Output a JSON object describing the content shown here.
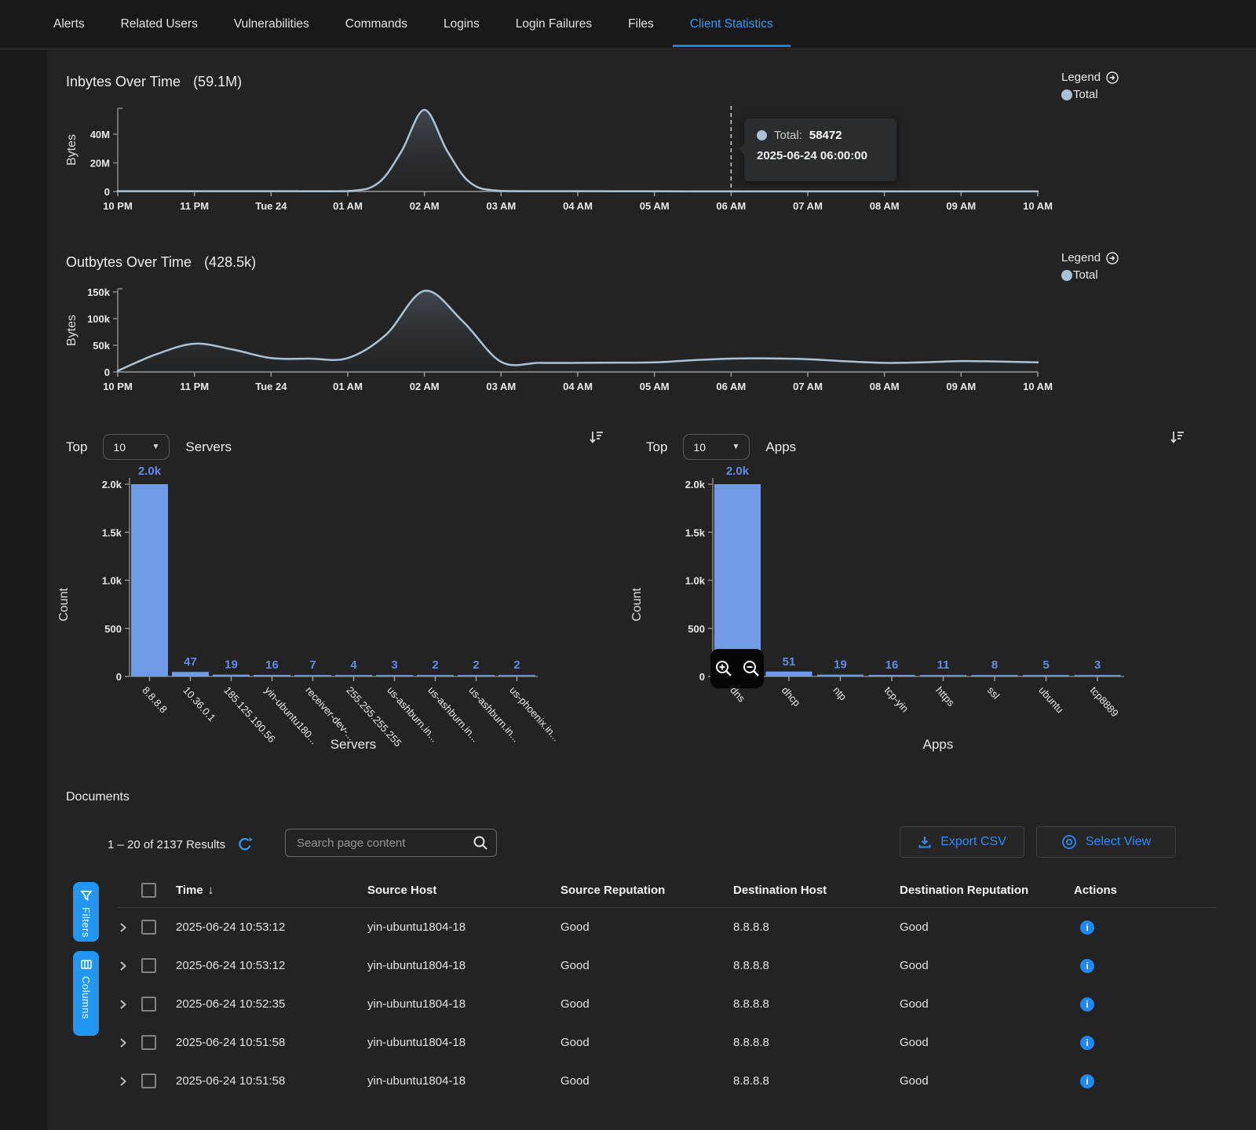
{
  "tabs": [
    {
      "label": "Alerts",
      "active": false
    },
    {
      "label": "Related Users",
      "active": false
    },
    {
      "label": "Vulnerabilities",
      "active": false
    },
    {
      "label": "Commands",
      "active": false
    },
    {
      "label": "Logins",
      "active": false
    },
    {
      "label": "Login Failures",
      "active": false
    },
    {
      "label": "Files",
      "active": false
    },
    {
      "label": "Client Statistics",
      "active": true
    }
  ],
  "legend": {
    "label": "Legend",
    "series": "Total"
  },
  "icons": {
    "caret_down": "▼",
    "sort_desc": "↓",
    "info": "i"
  },
  "chart_data": {
    "inbytes": {
      "type": "area",
      "title": "Inbytes Over Time",
      "total_label": "(59.1M)",
      "ylabel": "Bytes",
      "series_name": "Total",
      "x_ticks": [
        "10 PM",
        "11 PM",
        "Tue 24",
        "01 AM",
        "02 AM",
        "03 AM",
        "04 AM",
        "05 AM",
        "06 AM",
        "07 AM",
        "08 AM",
        "09 AM",
        "10 AM"
      ],
      "y_ticks": [
        {
          "v": 0,
          "label": "0"
        },
        {
          "v": 20000000,
          "label": "20M"
        },
        {
          "v": 40000000,
          "label": "40M"
        }
      ],
      "ymax": 58500000,
      "points": [
        [
          0,
          200000
        ],
        [
          1,
          200000
        ],
        [
          2,
          200000
        ],
        [
          3,
          300000
        ],
        [
          3.4,
          6000000
        ],
        [
          3.7,
          28000000
        ],
        [
          4,
          57000000
        ],
        [
          4.3,
          28000000
        ],
        [
          4.6,
          6000000
        ],
        [
          5,
          400000
        ],
        [
          6,
          200000
        ],
        [
          7,
          100000
        ],
        [
          8,
          58472
        ],
        [
          9,
          60000
        ],
        [
          10,
          50000
        ],
        [
          11,
          50000
        ],
        [
          12,
          50000
        ]
      ],
      "cursor_hour": 8,
      "tooltip": {
        "series_label": "Total:",
        "value": "58472",
        "timestamp": "2025-06-24 06:00:00"
      }
    },
    "outbytes": {
      "type": "area",
      "title": "Outbytes Over Time",
      "total_label": "(428.5k)",
      "ylabel": "Bytes",
      "series_name": "Total",
      "x_ticks": [
        "10 PM",
        "11 PM",
        "Tue 24",
        "01 AM",
        "02 AM",
        "03 AM",
        "04 AM",
        "05 AM",
        "06 AM",
        "07 AM",
        "08 AM",
        "09 AM",
        "10 AM"
      ],
      "y_ticks": [
        {
          "v": 0,
          "label": "0"
        },
        {
          "v": 50000,
          "label": "50k"
        },
        {
          "v": 100000,
          "label": "100k"
        },
        {
          "v": 150000,
          "label": "150k"
        }
      ],
      "ymax": 164000,
      "points": [
        [
          0,
          2000
        ],
        [
          0.5,
          33000
        ],
        [
          1,
          53000
        ],
        [
          1.5,
          42000
        ],
        [
          2,
          26000
        ],
        [
          2.5,
          25000
        ],
        [
          3,
          26000
        ],
        [
          3.5,
          70000
        ],
        [
          4,
          152000
        ],
        [
          4.5,
          95000
        ],
        [
          5,
          19000
        ],
        [
          5.5,
          17000
        ],
        [
          6,
          17000
        ],
        [
          6.5,
          17500
        ],
        [
          7,
          18000
        ],
        [
          7.5,
          22000
        ],
        [
          8,
          25000
        ],
        [
          8.5,
          25500
        ],
        [
          9,
          24000
        ],
        [
          9.5,
          20000
        ],
        [
          10,
          17000
        ],
        [
          10.5,
          18000
        ],
        [
          11,
          20500
        ],
        [
          11.5,
          19500
        ],
        [
          12,
          18000
        ]
      ]
    },
    "servers": {
      "type": "bar",
      "top_label": "Top",
      "top_value": "10",
      "entity": "Servers",
      "ylabel": "Count",
      "xlabel": "Servers",
      "y_ticks": [
        {
          "v": 0,
          "label": "0"
        },
        {
          "v": 500,
          "label": "500"
        },
        {
          "v": 1000,
          "label": "1.0k"
        },
        {
          "v": 1500,
          "label": "1.5k"
        },
        {
          "v": 2000,
          "label": "2.0k"
        }
      ],
      "ymax": 2000,
      "categories": [
        "8.8.8.8",
        "10.36.0.1",
        "185.125.190.56",
        "yin-ubuntu180...",
        "receiver-dev-...",
        "255.255.255.255",
        "us-ashburn.in...",
        "us-ashburn.in...",
        "us-ashburn.in...",
        "us-phoenix.in..."
      ],
      "values": [
        2000,
        47,
        19,
        16,
        7,
        4,
        3,
        2,
        2,
        2
      ],
      "value_labels": [
        "2.0k",
        "47",
        "19",
        "16",
        "7",
        "4",
        "3",
        "2",
        "2",
        "2"
      ]
    },
    "apps": {
      "type": "bar",
      "top_label": "Top",
      "top_value": "10",
      "entity": "Apps",
      "ylabel": "Count",
      "xlabel": "Apps",
      "y_ticks": [
        {
          "v": 0,
          "label": "0"
        },
        {
          "v": 500,
          "label": "500"
        },
        {
          "v": 1000,
          "label": "1.0k"
        },
        {
          "v": 1500,
          "label": "1.5k"
        },
        {
          "v": 2000,
          "label": "2.0k"
        }
      ],
      "ymax": 2000,
      "categories": [
        "dns",
        "dhcp",
        "ntp",
        "tcp-yin",
        "https",
        "ssl",
        "ubuntu",
        "tcp8889"
      ],
      "values": [
        2000,
        51,
        19,
        16,
        11,
        8,
        5,
        3
      ],
      "value_labels": [
        "2.0k",
        "51",
        "19",
        "16",
        "11",
        "8",
        "5",
        "3"
      ]
    }
  },
  "documents": {
    "heading": "Documents",
    "results_text": "1 – 20 of 2137 Results",
    "search_placeholder": "Search page content",
    "export_csv_label": "Export CSV",
    "select_view_label": "Select View",
    "filters_label": "Filters",
    "columns_label": "Columns",
    "table": {
      "headers": [
        "Time",
        "Source Host",
        "Source Reputation",
        "Destination Host",
        "Destination Reputation",
        "Actions"
      ],
      "rows": [
        {
          "time": "2025-06-24 10:53:12",
          "source_host": "yin-ubuntu1804-18",
          "source_reputation": "Good",
          "destination_host": "8.8.8.8",
          "destination_reputation": "Good"
        },
        {
          "time": "2025-06-24 10:53:12",
          "source_host": "yin-ubuntu1804-18",
          "source_reputation": "Good",
          "destination_host": "8.8.8.8",
          "destination_reputation": "Good"
        },
        {
          "time": "2025-06-24 10:52:35",
          "source_host": "yin-ubuntu1804-18",
          "source_reputation": "Good",
          "destination_host": "8.8.8.8",
          "destination_reputation": "Good"
        },
        {
          "time": "2025-06-24 10:51:58",
          "source_host": "yin-ubuntu1804-18",
          "source_reputation": "Good",
          "destination_host": "8.8.8.8",
          "destination_reputation": "Good"
        },
        {
          "time": "2025-06-24 10:51:58",
          "source_host": "yin-ubuntu1804-18",
          "source_reputation": "Good",
          "destination_host": "8.8.8.8",
          "destination_reputation": "Good"
        }
      ]
    }
  },
  "colors": {
    "accent_blue": "#2196f3",
    "bar_blue": "#6f9be4",
    "line_blue": "#a9c2d6",
    "value_label_blue": "#5f8ce8",
    "active_tab_blue": "#2e9bf6"
  }
}
